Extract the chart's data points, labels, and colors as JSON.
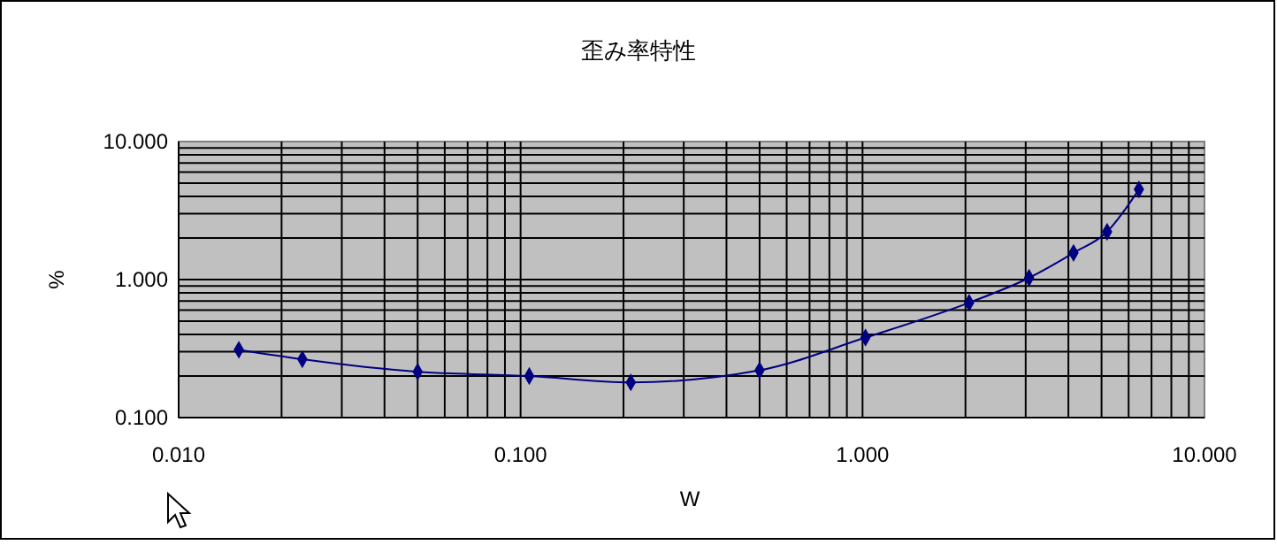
{
  "chart_data": {
    "type": "line",
    "title": "歪み率特性",
    "xlabel": "W",
    "ylabel": "%",
    "log": "xy",
    "grid": true,
    "marker": "diamond",
    "line_style": "solid",
    "xlim": [
      0.01,
      10
    ],
    "xticks": [
      {
        "value": 0.01,
        "label": "0.010"
      },
      {
        "value": 0.1,
        "label": "0.100"
      },
      {
        "value": 1,
        "label": "1.000"
      },
      {
        "value": 10,
        "label": "10.000"
      }
    ],
    "ylim": [
      0.1,
      10
    ],
    "yticks": [
      {
        "value": 0.1,
        "label": "0.100"
      },
      {
        "value": 1,
        "label": "1.000"
      },
      {
        "value": 10,
        "label": "10.000"
      }
    ],
    "series": [
      {
        "color": "#000080",
        "x": [
          0.015,
          0.023,
          0.05,
          0.106,
          0.21,
          0.5,
          1.02,
          2.05,
          3.07,
          4.14,
          5.19,
          6.43
        ],
        "values": [
          0.31,
          0.265,
          0.215,
          0.2,
          0.18,
          0.22,
          0.38,
          0.68,
          1.03,
          1.56,
          2.22,
          4.5
        ]
      }
    ]
  }
}
